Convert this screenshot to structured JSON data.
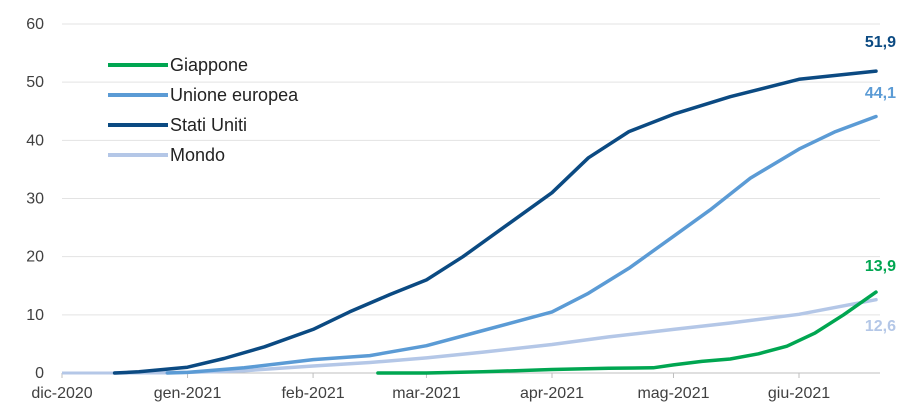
{
  "chart_data": {
    "type": "line",
    "title": "",
    "xlabel": "",
    "ylabel": "",
    "ylim": [
      0,
      60
    ],
    "yticks": [
      0,
      10,
      20,
      30,
      40,
      50,
      60
    ],
    "grid": true,
    "legend_position": "top-left",
    "x_domain": [
      "2020-12-01",
      "2021-06-21"
    ],
    "x_ticks": [
      {
        "date": "2020-12-01",
        "label": "dic-2020"
      },
      {
        "date": "2021-01-01",
        "label": "gen-2021"
      },
      {
        "date": "2021-02-01",
        "label": "feb-2021"
      },
      {
        "date": "2021-03-01",
        "label": "mar-2021"
      },
      {
        "date": "2021-04-01",
        "label": "apr-2021"
      },
      {
        "date": "2021-05-01",
        "label": "mag-2021"
      },
      {
        "date": "2021-06-01",
        "label": "giu-2021"
      }
    ],
    "series": [
      {
        "name": "Giappone",
        "color": "#00a651",
        "end_label": "13,9",
        "points": [
          [
            "2021-02-17",
            0.0
          ],
          [
            "2021-03-01",
            0.0
          ],
          [
            "2021-03-15",
            0.2
          ],
          [
            "2021-04-01",
            0.6
          ],
          [
            "2021-04-15",
            0.8
          ],
          [
            "2021-04-26",
            0.9
          ],
          [
            "2021-05-01",
            1.4
          ],
          [
            "2021-05-08",
            2.0
          ],
          [
            "2021-05-15",
            2.4
          ],
          [
            "2021-05-22",
            3.3
          ],
          [
            "2021-05-29",
            4.6
          ],
          [
            "2021-06-05",
            6.9
          ],
          [
            "2021-06-12",
            10.0
          ],
          [
            "2021-06-20",
            13.9
          ]
        ]
      },
      {
        "name": "Unione europea",
        "color": "#5b9bd5",
        "end_label": "44,1",
        "points": [
          [
            "2020-12-27",
            0.0
          ],
          [
            "2021-01-01",
            0.1
          ],
          [
            "2021-01-15",
            0.9
          ],
          [
            "2021-02-01",
            2.3
          ],
          [
            "2021-02-15",
            3.0
          ],
          [
            "2021-03-01",
            4.7
          ],
          [
            "2021-03-15",
            7.3
          ],
          [
            "2021-04-01",
            10.5
          ],
          [
            "2021-04-10",
            13.7
          ],
          [
            "2021-04-20",
            18.0
          ],
          [
            "2021-05-01",
            23.5
          ],
          [
            "2021-05-10",
            28.0
          ],
          [
            "2021-05-20",
            33.5
          ],
          [
            "2021-06-01",
            38.5
          ],
          [
            "2021-06-10",
            41.5
          ],
          [
            "2021-06-20",
            44.1
          ]
        ]
      },
      {
        "name": "Stati Uniti",
        "color": "#0b4a82",
        "end_label": "51,9",
        "points": [
          [
            "2020-12-14",
            0.0
          ],
          [
            "2020-12-20",
            0.2
          ],
          [
            "2021-01-01",
            1.0
          ],
          [
            "2021-01-10",
            2.5
          ],
          [
            "2021-01-20",
            4.5
          ],
          [
            "2021-02-01",
            7.5
          ],
          [
            "2021-02-10",
            10.5
          ],
          [
            "2021-02-20",
            13.5
          ],
          [
            "2021-03-01",
            16.0
          ],
          [
            "2021-03-10",
            20.0
          ],
          [
            "2021-03-20",
            25.0
          ],
          [
            "2021-04-01",
            31.0
          ],
          [
            "2021-04-10",
            37.0
          ],
          [
            "2021-04-20",
            41.5
          ],
          [
            "2021-05-01",
            44.5
          ],
          [
            "2021-05-15",
            47.5
          ],
          [
            "2021-06-01",
            50.5
          ],
          [
            "2021-06-20",
            51.9
          ]
        ]
      },
      {
        "name": "Mondo",
        "color": "#b4c7e7",
        "end_label": "12,6",
        "points": [
          [
            "2020-12-14",
            0.0
          ],
          [
            "2021-01-01",
            0.1
          ],
          [
            "2021-01-15",
            0.4
          ],
          [
            "2021-02-01",
            1.2
          ],
          [
            "2021-02-15",
            1.8
          ],
          [
            "2021-03-01",
            2.6
          ],
          [
            "2021-03-15",
            3.6
          ],
          [
            "2021-04-01",
            4.9
          ],
          [
            "2021-04-15",
            6.2
          ],
          [
            "2021-05-01",
            7.5
          ],
          [
            "2021-05-15",
            8.6
          ],
          [
            "2021-06-01",
            10.1
          ],
          [
            "2021-06-20",
            12.6
          ]
        ]
      }
    ]
  }
}
